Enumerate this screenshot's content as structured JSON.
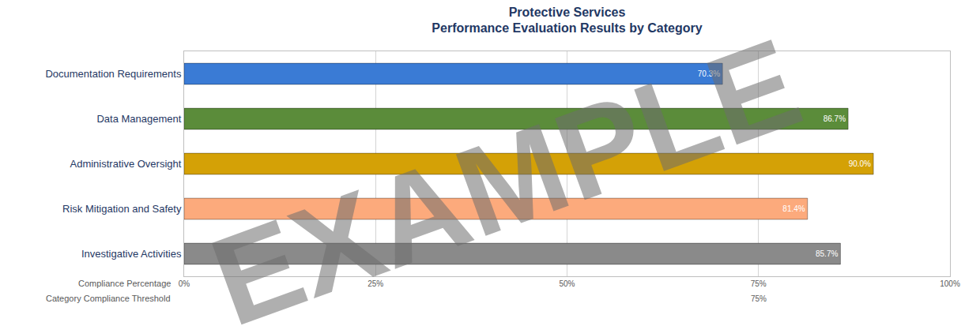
{
  "chart_data": {
    "type": "bar",
    "orientation": "horizontal",
    "title": "Protective Services",
    "subtitle": "Performance Evaluation Results by Category",
    "xlabel": "Compliance Percentage",
    "categories": [
      "Documentation Requirements",
      "Data Management",
      "Administrative Oversight",
      "Risk Mitigation and Safety",
      "Investigative Activities"
    ],
    "values": [
      70.3,
      86.7,
      90.0,
      81.4,
      85.7
    ],
    "value_labels": [
      "70.3%",
      "86.7%",
      "90.0%",
      "81.4%",
      "85.7%"
    ],
    "colors": [
      "#3a7bd5",
      "#5b8c3a",
      "#d4a106",
      "#fcaa7c",
      "#8a8a8a"
    ],
    "xlim": [
      0,
      100
    ],
    "xticks": [
      {
        "value": 0,
        "label": "0%"
      },
      {
        "value": 25,
        "label": "25%"
      },
      {
        "value": 50,
        "label": "50%"
      },
      {
        "value": 75,
        "label": "75%"
      },
      {
        "value": 100,
        "label": "100%"
      }
    ],
    "threshold": {
      "name": "Category Compliance Threshold",
      "value": 75,
      "label": "75%"
    },
    "annotations": [
      "EXAMPLE"
    ],
    "grid": true,
    "data_labels": true
  }
}
